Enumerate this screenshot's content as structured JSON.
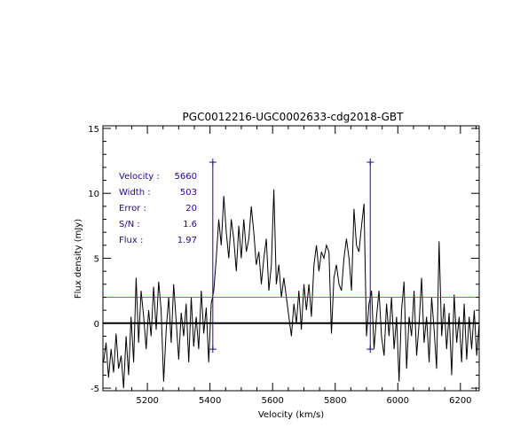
{
  "chart_data": {
    "type": "line",
    "title": "PGC0012216-UGC0002633-cdg2018-GBT",
    "xlabel": "Velocity (km/s)",
    "ylabel": "Flux density (mJy)",
    "xlim": [
      5058,
      6260
    ],
    "ylim": [
      -5.2,
      15.2
    ],
    "x_ticks": [
      5200,
      5400,
      5600,
      5800,
      6000,
      6200
    ],
    "y_ticks": [
      -5,
      0,
      5,
      10,
      15
    ],
    "x_tick_labels": [
      "5200",
      "5400",
      "5600",
      "5800",
      "6000",
      "6200"
    ],
    "y_tick_labels": [
      "-5",
      "0",
      "5",
      "10",
      "15"
    ],
    "grid": false,
    "legend": "none",
    "colors": {
      "spectrum": "#000000",
      "zero_line": "#000000",
      "noise_line": "#00cc00",
      "markers": "#2a00a0",
      "info_text": "#2a00a0"
    },
    "noise_level": 2.0,
    "width_markers": [
      {
        "x": 5409,
        "y_low": -2.0,
        "y_high": 12.4
      },
      {
        "x": 5912,
        "y_low": -2.0,
        "y_high": 12.4
      }
    ],
    "info": [
      {
        "label": "Velocity :",
        "value": "5660"
      },
      {
        "label": "Width :",
        "value": "503"
      },
      {
        "label": "Error :",
        "value": "20"
      },
      {
        "label": "S/N :",
        "value": "1.6"
      },
      {
        "label": "Flux :",
        "value": "1.97"
      }
    ],
    "series": [
      {
        "x": [
          5060,
          5068,
          5076,
          5084,
          5092,
          5100,
          5108,
          5116,
          5124,
          5132,
          5140,
          5148,
          5156,
          5164,
          5172,
          5180,
          5188,
          5196,
          5204,
          5212,
          5220,
          5228,
          5236,
          5244,
          5252,
          5260,
          5268,
          5276,
          5284,
          5292,
          5300,
          5308,
          5316,
          5324,
          5332,
          5340,
          5348,
          5356,
          5364,
          5372,
          5380,
          5388,
          5396,
          5404,
          5412,
          5420,
          5428,
          5436,
          5444,
          5452,
          5460,
          5468,
          5476,
          5484,
          5492,
          5500,
          5508,
          5516,
          5524,
          5532,
          5540,
          5548,
          5556,
          5564,
          5572,
          5580,
          5588,
          5596,
          5604,
          5612,
          5620,
          5628,
          5636,
          5644,
          5652,
          5660,
          5668,
          5676,
          5684,
          5692,
          5700,
          5708,
          5716,
          5724,
          5732,
          5740,
          5748,
          5756,
          5764,
          5772,
          5780,
          5788,
          5796,
          5804,
          5812,
          5820,
          5828,
          5836,
          5844,
          5852,
          5860,
          5868,
          5876,
          5884,
          5892,
          5900,
          5908,
          5916,
          5924,
          5932,
          5940,
          5948,
          5956,
          5964,
          5972,
          5980,
          5988,
          5996,
          6004,
          6012,
          6020,
          6028,
          6036,
          6044,
          6052,
          6060,
          6068,
          6076,
          6084,
          6092,
          6100,
          6108,
          6116,
          6124,
          6132,
          6140,
          6148,
          6156,
          6164,
          6172,
          6180,
          6188,
          6196,
          6204,
          6212,
          6220,
          6228,
          6236,
          6244,
          6252,
          6260
        ],
        "y": [
          -3,
          -1.5,
          -4.2,
          -2,
          -3.8,
          -0.8,
          -3.5,
          -2.5,
          -5,
          -1,
          -4,
          0.5,
          -3,
          3.5,
          -1.5,
          2.5,
          0.5,
          -2,
          1,
          -1,
          2.8,
          -0.5,
          3.2,
          1,
          -4.5,
          -0.5,
          2,
          -1.5,
          3,
          0.2,
          -2.8,
          0.8,
          -1,
          1.5,
          -3,
          2,
          -1.8,
          0.5,
          -2,
          2.5,
          -0.8,
          1.2,
          -3,
          1.5,
          2.5,
          5,
          8,
          6,
          9.8,
          7,
          5,
          8,
          6.5,
          4,
          7.5,
          5,
          8,
          5.5,
          6.5,
          9,
          7,
          4.5,
          5.5,
          3,
          5,
          6.5,
          2.5,
          4.5,
          10.3,
          3,
          4.5,
          2,
          3.5,
          2,
          0.5,
          -1,
          1.5,
          0,
          2.5,
          -0.5,
          3,
          1,
          3,
          0.5,
          4.5,
          6,
          4,
          5.5,
          5,
          6,
          5.5,
          -0.8,
          3.5,
          4.5,
          3,
          2.5,
          5,
          6.5,
          5,
          2.5,
          8.8,
          6,
          5.5,
          7.5,
          9.2,
          -1,
          1.5,
          2.5,
          -2,
          0.5,
          2.5,
          -1,
          -2.5,
          1.5,
          -1,
          2,
          -2,
          0.5,
          -4.5,
          1,
          3.2,
          -3.5,
          0.5,
          -1,
          2.5,
          -2.5,
          0,
          3.5,
          -1.5,
          0.5,
          -3,
          2,
          -0.5,
          -3.5,
          6.3,
          -1,
          1.5,
          -2,
          0.8,
          -4,
          2.2,
          -1.5,
          0.5,
          -3,
          1.5,
          -2.8,
          0.5,
          -2,
          1,
          -2.5,
          0
        ]
      }
    ]
  }
}
